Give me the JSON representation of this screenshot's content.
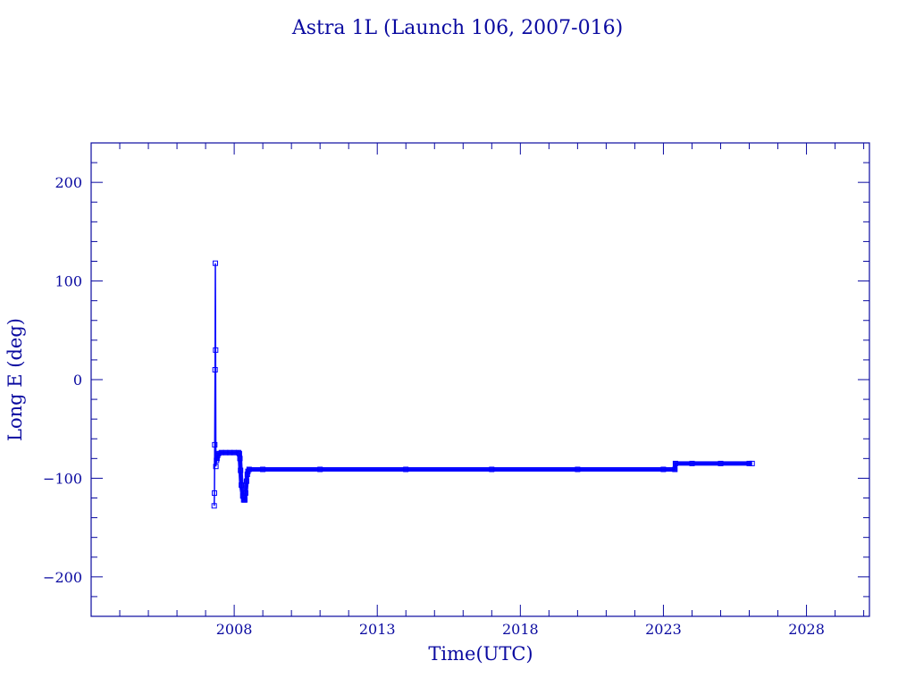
{
  "chart_data": {
    "type": "line",
    "title": "Astra 1L (Launch 106, 2007-016)",
    "xlabel": "Time(UTC)",
    "ylabel": "Long E (deg)",
    "xlim": [
      2003.0,
      2030.2
    ],
    "ylim": [
      -240,
      240
    ],
    "x_ticks": [
      2008,
      2013,
      2018,
      2023,
      2028
    ],
    "y_ticks": [
      -200,
      -100,
      0,
      100,
      200
    ],
    "grid": false,
    "colors": {
      "axis": "#0a0aa0",
      "series": "#0000ff"
    },
    "series": [
      {
        "x": [
          2007.3,
          2007.31,
          2007.32,
          2007.33,
          2007.34,
          2007.35,
          2007.36,
          2007.38,
          2007.4,
          2007.42,
          2007.45,
          2007.55,
          2007.7,
          2007.85,
          2008.0,
          2008.15,
          2008.18,
          2008.2,
          2008.22,
          2008.25,
          2008.3,
          2008.33,
          2008.37,
          2008.4,
          2008.43,
          2008.46,
          2008.48,
          2008.52,
          2009.0,
          2011.0,
          2014.0,
          2017.0,
          2020.0,
          2023.0,
          2023.4,
          2023.42,
          2024.0,
          2025.0,
          2026.0,
          2026.1
        ],
        "y": [
          -128,
          -115,
          -66,
          10,
          118,
          30,
          -88,
          -82,
          -80,
          -77,
          -75,
          -74,
          -74,
          -74,
          -74,
          -74,
          -75,
          -80,
          -92,
          -107,
          -118,
          -122,
          -122,
          -115,
          -103,
          -96,
          -93,
          -91,
          -91,
          -91,
          -91,
          -91,
          -91,
          -91,
          -91,
          -85,
          -85,
          -85,
          -85,
          -85
        ]
      }
    ]
  }
}
